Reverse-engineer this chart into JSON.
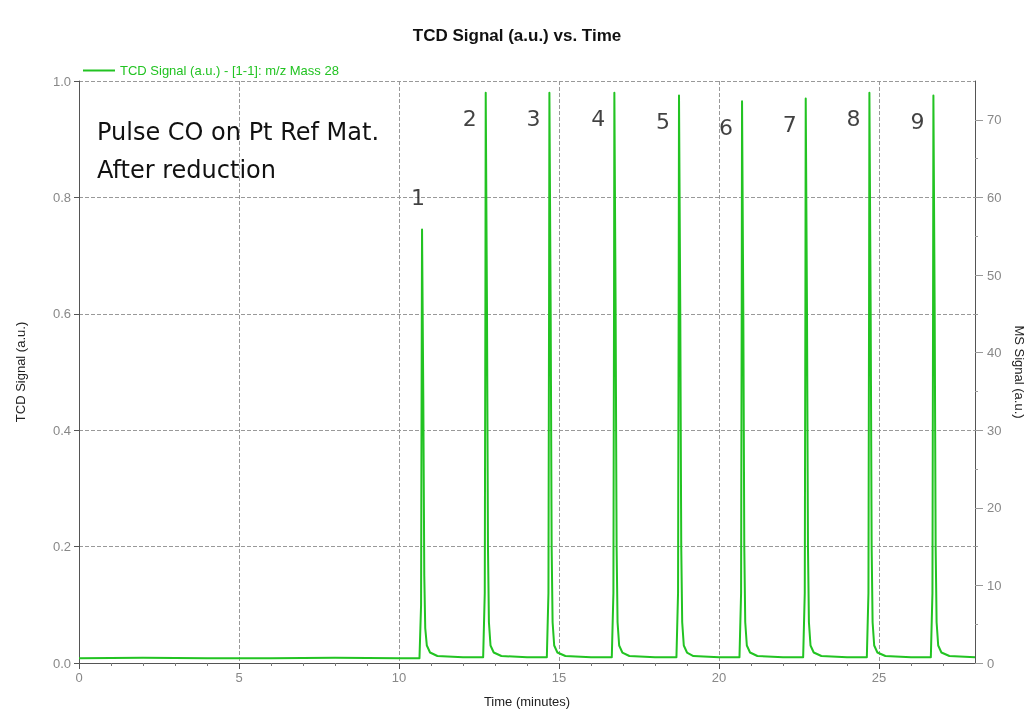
{
  "chart_data": {
    "type": "line",
    "title": "TCD Signal (a.u.) vs. Time",
    "xlabel": "Time (minutes)",
    "ylabel": "TCD Signal (a.u.)",
    "y2label": "MS Signal (a.u.)",
    "series": [
      {
        "name": "TCD Signal (a.u.) - [1-1]: m/z Mass 28",
        "color": "#22c322",
        "x": [
          0,
          2,
          4,
          6,
          8,
          10,
          10.64,
          10.69,
          10.71,
          10.72,
          10.76,
          10.79,
          10.82,
          10.87,
          10.97,
          11.2,
          12,
          12.63,
          12.68,
          12.7,
          12.71,
          12.75,
          12.78,
          12.81,
          12.86,
          12.96,
          13.2,
          14,
          14.62,
          14.67,
          14.69,
          14.7,
          14.74,
          14.77,
          14.8,
          14.85,
          14.95,
          15.2,
          16,
          16.65,
          16.7,
          16.72,
          16.73,
          16.77,
          16.8,
          16.83,
          16.88,
          16.98,
          17.2,
          18,
          18.67,
          18.72,
          18.74,
          18.75,
          18.79,
          18.82,
          18.85,
          18.9,
          19.0,
          19.2,
          20,
          20.64,
          20.69,
          20.71,
          20.72,
          20.76,
          20.79,
          20.82,
          20.87,
          20.97,
          21.2,
          22,
          22.63,
          22.68,
          22.7,
          22.71,
          22.75,
          22.78,
          22.81,
          22.86,
          22.96,
          23.2,
          24,
          24.62,
          24.67,
          24.69,
          24.7,
          24.74,
          24.77,
          24.8,
          24.85,
          24.95,
          25.2,
          26,
          26.62,
          26.67,
          26.69,
          26.7,
          26.74,
          26.77,
          26.8,
          26.85,
          26.95,
          27.2,
          28
        ],
        "values": [
          0.008,
          0.009,
          0.008,
          0.008,
          0.009,
          0.008,
          0.008,
          0.1,
          0.55,
          0.745,
          0.45,
          0.15,
          0.06,
          0.03,
          0.018,
          0.012,
          0.01,
          0.01,
          0.12,
          0.62,
          0.98,
          0.6,
          0.2,
          0.07,
          0.03,
          0.018,
          0.012,
          0.01,
          0.01,
          0.12,
          0.62,
          0.98,
          0.6,
          0.2,
          0.07,
          0.03,
          0.018,
          0.012,
          0.01,
          0.01,
          0.12,
          0.62,
          0.98,
          0.6,
          0.2,
          0.07,
          0.03,
          0.018,
          0.012,
          0.01,
          0.01,
          0.12,
          0.62,
          0.975,
          0.6,
          0.2,
          0.07,
          0.03,
          0.018,
          0.012,
          0.01,
          0.01,
          0.12,
          0.62,
          0.965,
          0.6,
          0.2,
          0.07,
          0.03,
          0.018,
          0.012,
          0.01,
          0.01,
          0.12,
          0.62,
          0.97,
          0.6,
          0.2,
          0.07,
          0.03,
          0.018,
          0.012,
          0.01,
          0.01,
          0.12,
          0.62,
          0.98,
          0.6,
          0.2,
          0.07,
          0.03,
          0.018,
          0.012,
          0.01,
          0.01,
          0.12,
          0.62,
          0.975,
          0.6,
          0.2,
          0.07,
          0.03,
          0.018,
          0.012,
          0.01
        ]
      }
    ],
    "xlim": [
      0,
      28
    ],
    "xticks": [
      0,
      5,
      10,
      15,
      20,
      25
    ],
    "ylim": [
      0,
      1
    ],
    "yticks": [
      {
        "value": 0,
        "label": "0.0"
      },
      {
        "value": 0.2,
        "label": "0.2"
      },
      {
        "value": 0.4,
        "label": "0.4"
      },
      {
        "value": 0.6,
        "label": "0.6"
      },
      {
        "value": 0.8,
        "label": "0.8"
      },
      {
        "value": 1,
        "label": "1.0"
      }
    ],
    "y2lim": [
      0,
      75
    ],
    "y2ticks": [
      0,
      10,
      20,
      30,
      40,
      50,
      60,
      70
    ],
    "grid": true,
    "legend": "top left",
    "marker": "none",
    "line_style": "solid",
    "annotations": [
      "Pulse CO on Pt Ref Mat.",
      "After reduction",
      {
        "text": "1",
        "x": 10.72,
        "y": 0.745
      },
      {
        "text": "2",
        "x": 12.71,
        "y": 0.98
      },
      {
        "text": "3",
        "x": 14.7,
        "y": 0.98
      },
      {
        "text": "4",
        "x": 16.73,
        "y": 0.98
      },
      {
        "text": "5",
        "x": 18.75,
        "y": 0.975
      },
      {
        "text": "6",
        "x": 20.72,
        "y": 0.965
      },
      {
        "text": "7",
        "x": 22.71,
        "y": 0.97
      },
      {
        "text": "8",
        "x": 24.7,
        "y": 0.98
      },
      {
        "text": "9",
        "x": 26.7,
        "y": 0.975
      }
    ]
  }
}
